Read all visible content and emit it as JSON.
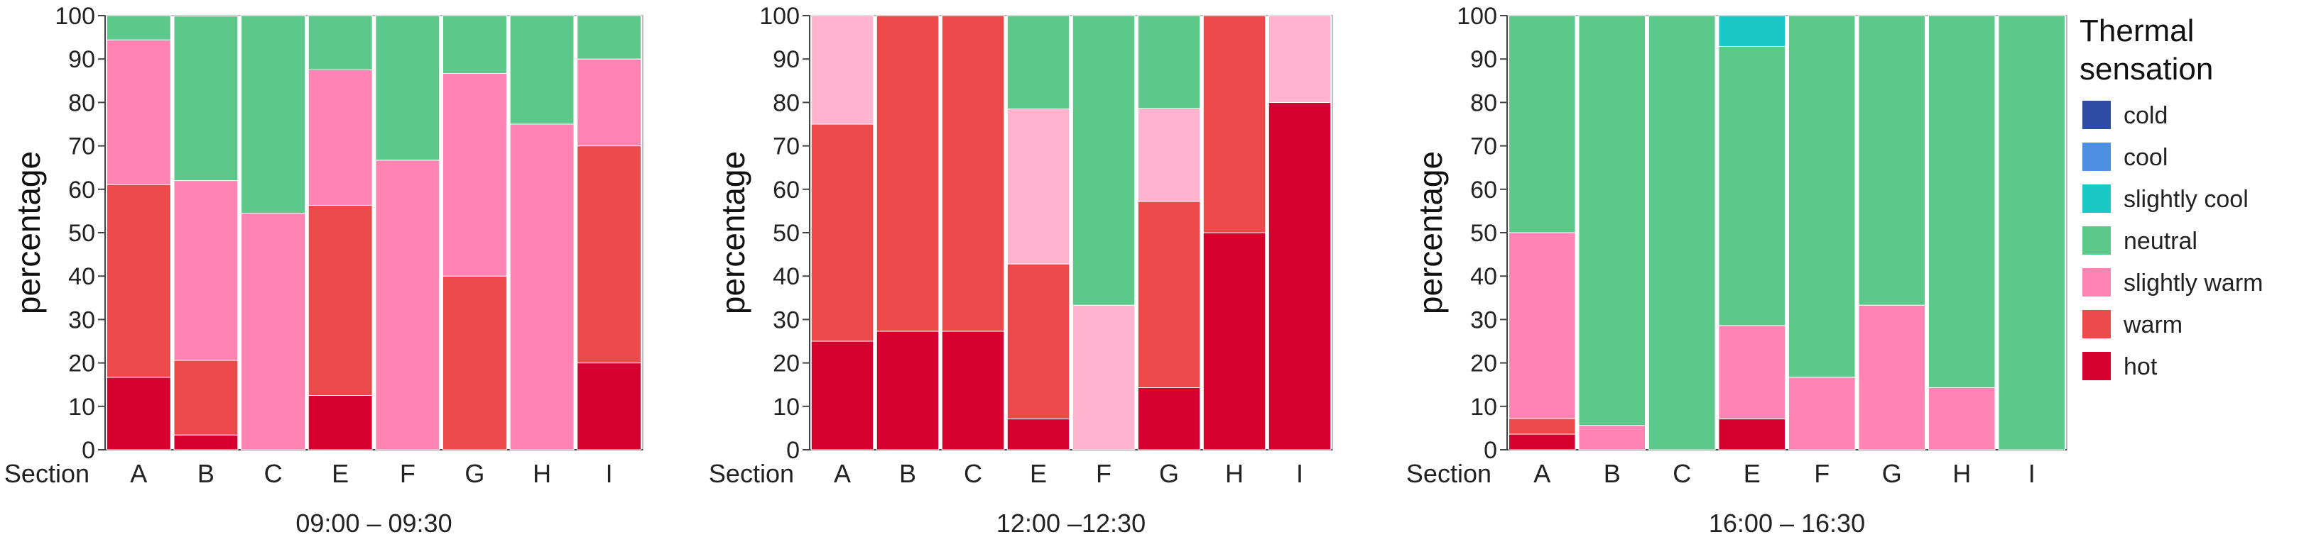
{
  "chart_data": [
    {
      "type": "bar",
      "stacked": true,
      "title": "09:00 – 09:30",
      "xlabel": "Section",
      "ylabel": "percentage",
      "ylim": [
        0,
        100
      ],
      "yticks": [
        0,
        10,
        20,
        30,
        40,
        50,
        60,
        70,
        80,
        90,
        100
      ],
      "categories": [
        "A",
        "B",
        "C",
        "E",
        "F",
        "G",
        "H",
        "I"
      ],
      "series": [
        {
          "name": "hot",
          "values": [
            16.7,
            3.4,
            0,
            12.5,
            0,
            0,
            0,
            20
          ]
        },
        {
          "name": "warm",
          "values": [
            44.4,
            17.2,
            0,
            43.8,
            0,
            40,
            0,
            50
          ]
        },
        {
          "name": "slightly warm",
          "values": [
            33.3,
            41.4,
            54.5,
            31.2,
            66.7,
            46.7,
            75,
            20
          ]
        },
        {
          "name": "neutral",
          "values": [
            5.6,
            37.9,
            45.5,
            12.5,
            33.3,
            13.3,
            25,
            10
          ]
        },
        {
          "name": "slightly cool",
          "values": [
            0,
            0,
            0,
            0,
            0,
            0,
            0,
            0
          ]
        },
        {
          "name": "cool",
          "values": [
            0,
            0,
            0,
            0,
            0,
            0,
            0,
            0
          ]
        },
        {
          "name": "cold",
          "values": [
            0,
            0,
            0,
            0,
            0,
            0,
            0,
            0
          ]
        }
      ]
    },
    {
      "type": "bar",
      "stacked": true,
      "title": "12:00 –12:30",
      "xlabel": "Section",
      "ylabel": "percentage",
      "ylim": [
        0,
        100
      ],
      "yticks": [
        0,
        10,
        20,
        30,
        40,
        50,
        60,
        70,
        80,
        90,
        100
      ],
      "categories": [
        "A",
        "B",
        "C",
        "E",
        "F",
        "G",
        "H",
        "I"
      ],
      "series": [
        {
          "name": "hot",
          "values": [
            25,
            27.3,
            27.3,
            7.1,
            0,
            14.3,
            50,
            80
          ]
        },
        {
          "name": "warm",
          "values": [
            50,
            72.7,
            72.7,
            35.7,
            0,
            42.9,
            50,
            0
          ]
        },
        {
          "name": "slightly warm",
          "values": [
            25,
            0,
            0,
            35.7,
            33.3,
            21.4,
            0,
            20
          ]
        },
        {
          "name": "neutral",
          "values": [
            0,
            0,
            0,
            21.5,
            66.7,
            21.4,
            0,
            0
          ]
        },
        {
          "name": "slightly cool",
          "values": [
            0,
            0,
            0,
            0,
            0,
            0,
            0,
            0
          ]
        },
        {
          "name": "cool",
          "values": [
            0,
            0,
            0,
            0,
            0,
            0,
            0,
            0
          ]
        },
        {
          "name": "cold",
          "values": [
            0,
            0,
            0,
            0,
            0,
            0,
            0,
            0
          ]
        }
      ]
    },
    {
      "type": "bar",
      "stacked": true,
      "title": "16:00 – 16:30",
      "xlabel": "Section",
      "ylabel": "percentage",
      "ylim": [
        0,
        100
      ],
      "yticks": [
        0,
        10,
        20,
        30,
        40,
        50,
        60,
        70,
        80,
        90,
        100
      ],
      "categories": [
        "A",
        "B",
        "C",
        "E",
        "F",
        "G",
        "H",
        "I"
      ],
      "series": [
        {
          "name": "hot",
          "values": [
            3.6,
            0,
            0,
            7.1,
            0,
            0,
            0,
            0
          ]
        },
        {
          "name": "warm",
          "values": [
            3.6,
            0,
            0,
            0,
            0,
            0,
            0,
            0
          ]
        },
        {
          "name": "slightly warm",
          "values": [
            42.8,
            5.6,
            0,
            21.5,
            16.7,
            33.3,
            14.3,
            0
          ]
        },
        {
          "name": "neutral",
          "values": [
            50,
            94.4,
            100,
            64.3,
            83.3,
            66.7,
            85.7,
            100
          ]
        },
        {
          "name": "slightly cool",
          "values": [
            0,
            0,
            0,
            7.1,
            0,
            0,
            0,
            0
          ]
        },
        {
          "name": "cool",
          "values": [
            0,
            0,
            0,
            0,
            0,
            0,
            0,
            0
          ]
        },
        {
          "name": "cold",
          "values": [
            0,
            0,
            0,
            0,
            0,
            0,
            0,
            0
          ]
        }
      ]
    }
  ],
  "legend": {
    "title_line1": "Thermal",
    "title_line2": "sensation",
    "position": "right",
    "items": [
      {
        "name": "cold",
        "color": "#2f4ea3"
      },
      {
        "name": "cool",
        "color": "#4d8fe0"
      },
      {
        "name": "slightly cool",
        "color": "#1bc8c8"
      },
      {
        "name": "neutral",
        "color": "#5cc98a"
      },
      {
        "name": "slightly warm",
        "color": "#ff84b4"
      },
      {
        "name": "warm",
        "color": "#ec4a4a"
      },
      {
        "name": "hot",
        "color": "#d6002e"
      }
    ]
  },
  "series_colors": {
    "hot": "#d6002e",
    "warm": "#ec4a4a",
    "slightly warm": "#ff84b4",
    "neutral": "#5cc98a",
    "slightly cool": "#1bc8c8",
    "cool": "#4d8fe0",
    "cold": "#2f4ea3"
  },
  "variant_colors": {
    "slightly warm light": "#ffb3cf"
  }
}
